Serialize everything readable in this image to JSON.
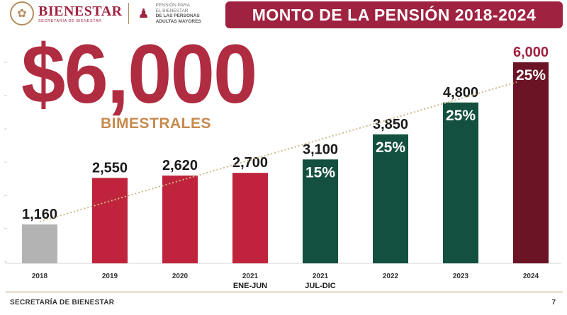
{
  "header": {
    "brand_name": "BIENESTAR",
    "brand_sub": "SECRETARÍA DE BIENESTAR",
    "pension_line1": "PENSIÓN PARA",
    "pension_line2": "EL BIENESTAR",
    "pension_line3": "DE LAS PERSONAS",
    "pension_line4": "ADULTAS MAYORES",
    "title": "MONTO DE LA PENSIÓN 2018-2024"
  },
  "highlight": {
    "amount": "$6,000",
    "caption": "BIMESTRALES"
  },
  "footer": {
    "left": "SECRETARÍA DE BIENESTAR",
    "page": "7"
  },
  "colors": {
    "brand": "#9f2241",
    "gold": "#b38e5d",
    "gray_bar": "#b3b3b3",
    "red_bar": "#c0243c",
    "green_bar": "#13503f",
    "dark_bar": "#6b1426",
    "trend": "#c9b98a"
  },
  "chart_data": {
    "type": "bar",
    "categories": [
      "2018",
      "2019",
      "2020",
      "2021",
      "2021",
      "2022",
      "2023",
      "2024"
    ],
    "sublabels": [
      "",
      "",
      "",
      "ENE-JUN",
      "JUL-DIC",
      "",
      "",
      ""
    ],
    "values": [
      1160,
      2550,
      2620,
      2700,
      3100,
      3850,
      4800,
      6000
    ],
    "value_labels": [
      "1,160",
      "2,550",
      "2,620",
      "2,700",
      "3,100",
      "3,850",
      "4,800",
      "6,000"
    ],
    "increase_labels": [
      "",
      "",
      "",
      "",
      "15%",
      "25%",
      "25%",
      "25%"
    ],
    "bar_colors": [
      "gray",
      "red",
      "red",
      "red",
      "green",
      "green",
      "green",
      "dark"
    ],
    "trendline": true,
    "ylim": [
      0,
      6000
    ],
    "title": "MONTO DE LA PENSIÓN 2018-2024",
    "xlabel": "",
    "ylabel": ""
  }
}
